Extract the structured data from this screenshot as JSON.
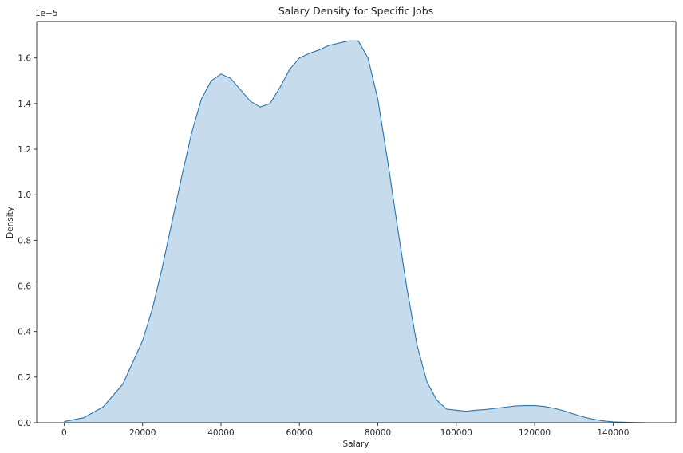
{
  "chart_data": {
    "type": "area",
    "title": "Salary Density for Specific Jobs",
    "xlabel": "Salary",
    "ylabel": "Density",
    "y_offset_label": "1e−5",
    "grid": false,
    "xlim": [
      -7000,
      156000
    ],
    "ylim": [
      0,
      1.76
    ],
    "x_ticks": [
      0,
      20000,
      40000,
      60000,
      80000,
      100000,
      120000,
      140000
    ],
    "x_tick_labels": [
      "0",
      "20000",
      "40000",
      "60000",
      "80000",
      "100000",
      "120000",
      "140000"
    ],
    "y_ticks": [
      0,
      0.2,
      0.4,
      0.6,
      0.8,
      1.0,
      1.2,
      1.4,
      1.6
    ],
    "y_tick_labels": [
      "0.0",
      "0.2",
      "0.4",
      "0.6",
      "0.8",
      "1.0",
      "1.2",
      "1.4",
      "1.6"
    ],
    "colors": {
      "line": "#1f77b4",
      "fill": "#c6dcec"
    },
    "series": [
      {
        "x": [
          0,
          5000,
          10000,
          15000,
          20000,
          22500,
          25000,
          27500,
          30000,
          32500,
          35000,
          37500,
          40000,
          42500,
          45000,
          47500,
          50000,
          52500,
          55000,
          57500,
          60000,
          62500,
          65000,
          67500,
          70000,
          72500,
          75000,
          77500,
          80000,
          82500,
          85000,
          87500,
          90000,
          92500,
          95000,
          97500,
          100000,
          102500,
          105000,
          107500,
          110000,
          112500,
          115000,
          117500,
          120000,
          122500,
          125000,
          127500,
          130000,
          132500,
          135000,
          137500,
          140000,
          145000,
          149000
        ],
        "values": [
          0.005,
          0.022,
          0.07,
          0.17,
          0.36,
          0.5,
          0.68,
          0.88,
          1.08,
          1.27,
          1.42,
          1.5,
          1.53,
          1.51,
          1.46,
          1.41,
          1.385,
          1.4,
          1.47,
          1.55,
          1.6,
          1.62,
          1.635,
          1.655,
          1.665,
          1.675,
          1.675,
          1.6,
          1.42,
          1.15,
          0.86,
          0.58,
          0.34,
          0.18,
          0.1,
          0.06,
          0.055,
          0.05,
          0.055,
          0.058,
          0.063,
          0.068,
          0.073,
          0.075,
          0.075,
          0.071,
          0.063,
          0.052,
          0.038,
          0.025,
          0.015,
          0.008,
          0.004,
          0.001,
          0.0
        ]
      }
    ]
  }
}
